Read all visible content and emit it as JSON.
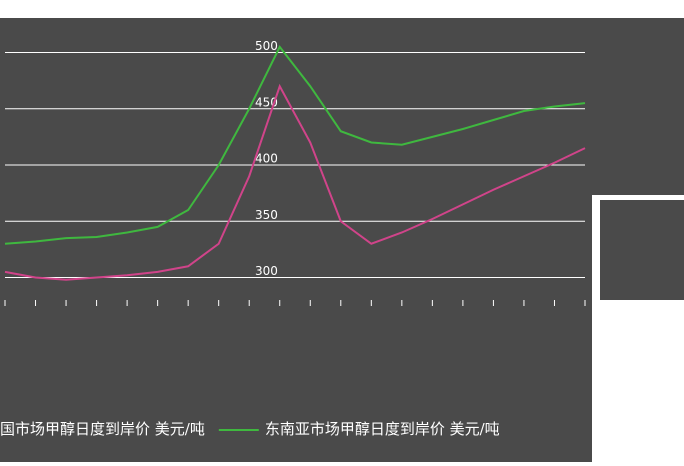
{
  "chart_data": {
    "type": "line",
    "categories": [
      null,
      null,
      null,
      null,
      null,
      null,
      null,
      null,
      null,
      null,
      null,
      null,
      null,
      null,
      null,
      null,
      null,
      null,
      null,
      null
    ],
    "series": [
      {
        "name": "国市场甲醇日度到岸价 美元/吨",
        "color": "#d0448a",
        "values": [
          305,
          300,
          298,
          300,
          302,
          305,
          310,
          330,
          390,
          470,
          420,
          350,
          330,
          340,
          352,
          365,
          378,
          390,
          402,
          415
        ]
      },
      {
        "name": "东南亚市场甲醇日度到岸价 美元/吨",
        "color": "#3fb83f",
        "values": [
          330,
          332,
          335,
          336,
          340,
          345,
          360,
          400,
          450,
          505,
          470,
          430,
          420,
          418,
          425,
          432,
          440,
          448,
          452,
          455
        ]
      }
    ],
    "ylim": [
      280,
      520
    ],
    "yticks": [
      300,
      350,
      400,
      450,
      500
    ],
    "grid": true
  }
}
